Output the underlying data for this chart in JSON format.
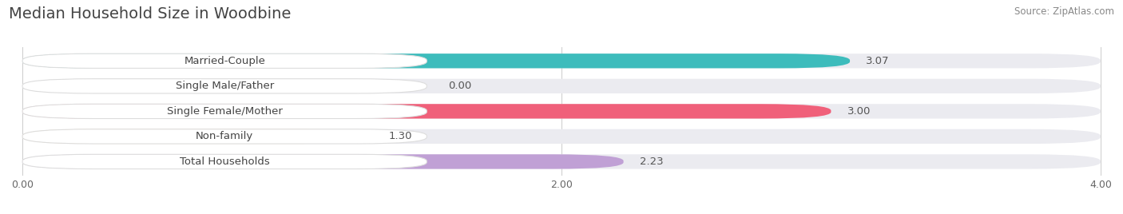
{
  "title": "Median Household Size in Woodbine",
  "source": "Source: ZipAtlas.com",
  "categories": [
    "Married-Couple",
    "Single Male/Father",
    "Single Female/Mother",
    "Non-family",
    "Total Households"
  ],
  "values": [
    3.07,
    0.0,
    3.0,
    1.3,
    2.23
  ],
  "bar_colors": [
    "#3dbcbc",
    "#a8b8e8",
    "#f0607a",
    "#f7c87a",
    "#c0a0d5"
  ],
  "xlim_max": 4.0,
  "xticks": [
    0.0,
    2.0,
    4.0
  ],
  "xtick_labels": [
    "0.00",
    "2.00",
    "4.00"
  ],
  "background_color": "#ffffff",
  "bar_bg_color": "#ebebf0",
  "title_fontsize": 14,
  "label_fontsize": 9.5,
  "value_fontsize": 9.5,
  "bar_height": 0.58,
  "bar_spacing": 1.0
}
